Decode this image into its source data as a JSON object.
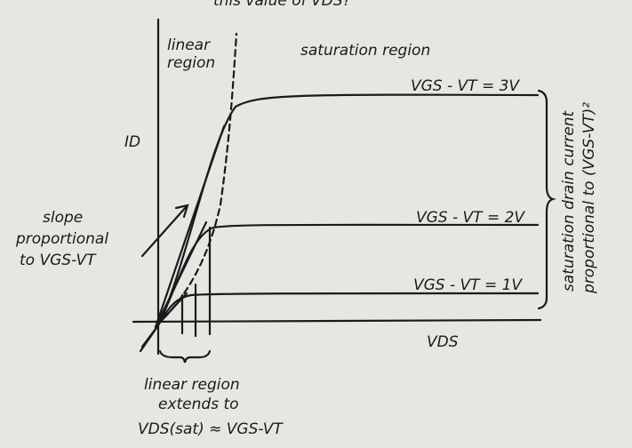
{
  "header": {
    "text": "this value of VDS?"
  },
  "region_labels": {
    "linear": [
      "linear",
      "region"
    ],
    "saturation": "saturation region"
  },
  "axes": {
    "y": "ID",
    "x": "VDS"
  },
  "curves": [
    {
      "label": "VGS - VT = 3V"
    },
    {
      "label": "VGS - VT = 2V"
    },
    {
      "label": "VGS - VT = 1V"
    }
  ],
  "slope_note": [
    "slope",
    "proportional",
    "to VGS-VT"
  ],
  "saturation_note": [
    "saturation drain current",
    "proportional to (VGS-VT)²"
  ],
  "linear_note": [
    "linear region",
    "extends to",
    "VDS(sat) ≈ VGS-VT"
  ]
}
